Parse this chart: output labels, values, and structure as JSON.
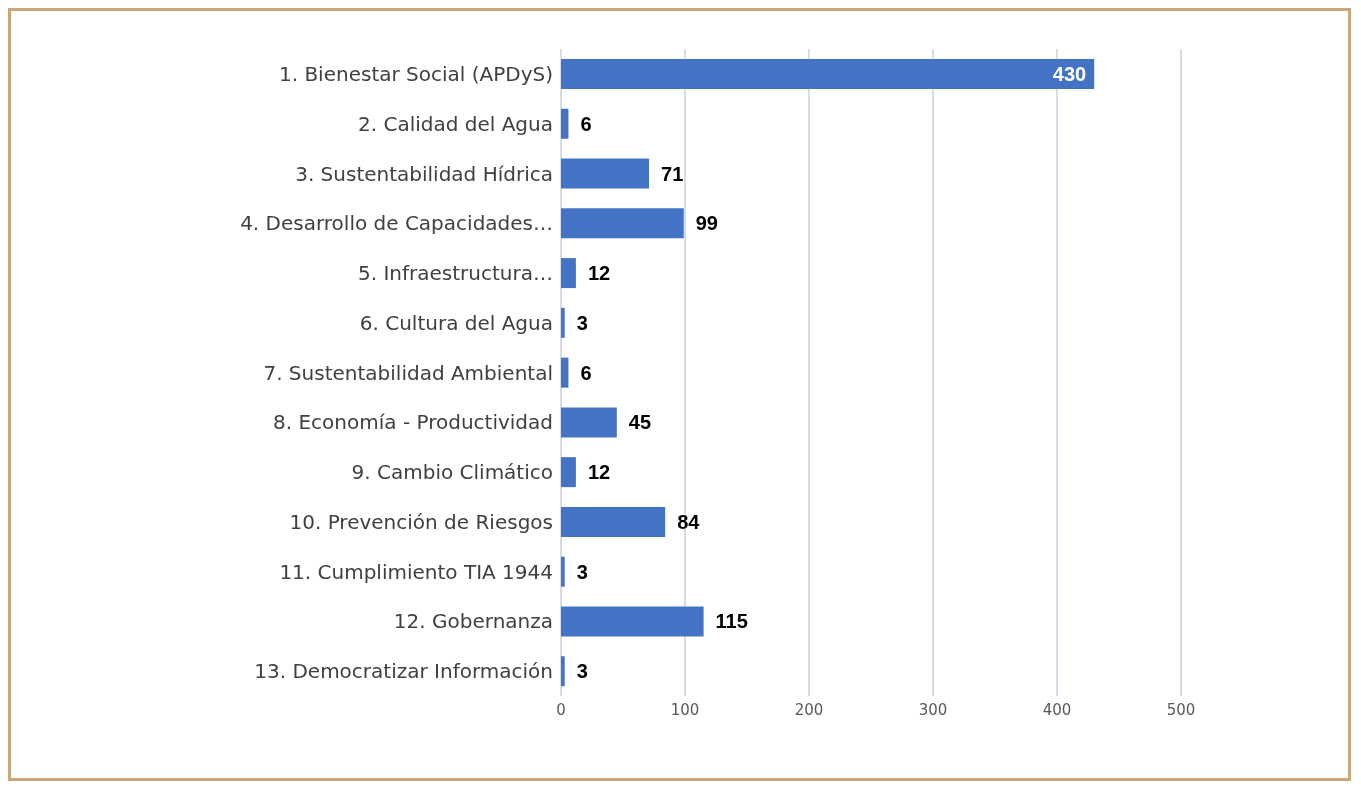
{
  "chart_data": {
    "type": "bar",
    "orientation": "horizontal",
    "categories": [
      "1. Bienestar Social (APDyS)",
      "2. Calidad del Agua",
      "3. Sustentabilidad Hídrica",
      "4. Desarrollo de Capacidades…",
      "5. Infraestructura…",
      "6. Cultura del Agua",
      "7. Sustentabilidad Ambiental",
      "8. Economía - Productividad",
      "9. Cambio Climático",
      "10. Prevención de Riesgos",
      "11. Cumplimiento TIA 1944",
      "12. Gobernanza",
      "13. Democratizar Información"
    ],
    "values": [
      430,
      6,
      71,
      99,
      12,
      3,
      6,
      45,
      12,
      84,
      3,
      115,
      3
    ],
    "color": "#4472c4",
    "xlim": [
      0,
      500
    ],
    "xticks": [
      0,
      100,
      200,
      300,
      400,
      500
    ],
    "grid": "x",
    "data_labels": true
  }
}
